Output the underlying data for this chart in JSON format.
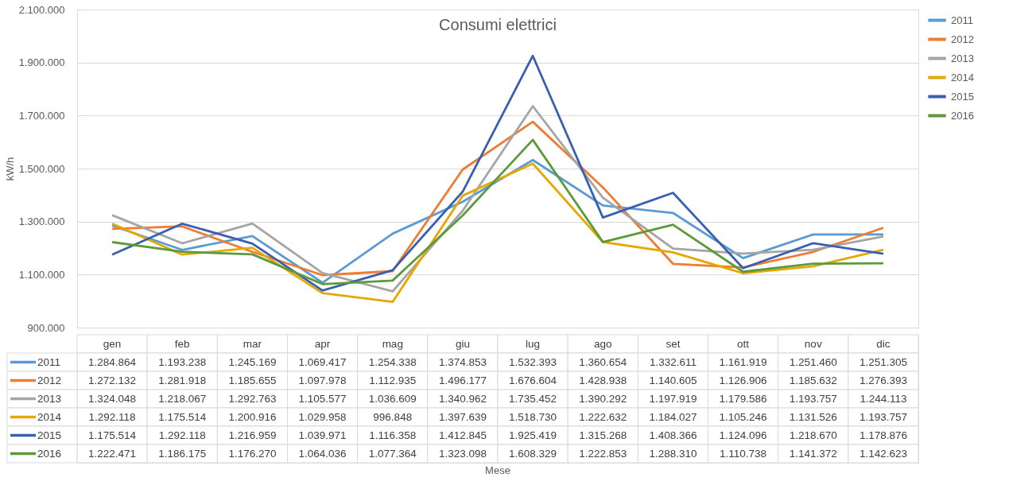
{
  "chart_data": {
    "type": "line",
    "title": "Consumi elettrici",
    "ylabel": "kW/h",
    "annotations": [
      "Mese"
    ],
    "categories": [
      "gen",
      "feb",
      "mar",
      "apr",
      "mag",
      "giu",
      "lug",
      "ago",
      "set",
      "ott",
      "nov",
      "dic"
    ],
    "series": [
      {
        "name": "2011",
        "color": "#5b9bd5",
        "values": [
          1284864,
          1193238,
          1245169,
          1069417,
          1254338,
          1374853,
          1532393,
          1360654,
          1332611,
          1161919,
          1251460,
          1251305
        ],
        "value_labels": [
          "1.284.864",
          "1.193.238",
          "1.245.169",
          "1.069.417",
          "1.254.338",
          "1.374.853",
          "1.532.393",
          "1.360.654",
          "1.332.611",
          "1.161.919",
          "1.251.460",
          "1.251.305"
        ]
      },
      {
        "name": "2012",
        "color": "#ed7d31",
        "values": [
          1272132,
          1281918,
          1185655,
          1097978,
          1112935,
          1496177,
          1676604,
          1428938,
          1140605,
          1126906,
          1185632,
          1276393
        ],
        "value_labels": [
          "1.272.132",
          "1.281.918",
          "1.185.655",
          "1.097.978",
          "1.112.935",
          "1.496.177",
          "1.676.604",
          "1.428.938",
          "1.140.605",
          "1.126.906",
          "1.185.632",
          "1.276.393"
        ]
      },
      {
        "name": "2013",
        "color": "#a5a5a5",
        "values": [
          1324048,
          1218067,
          1292763,
          1105577,
          1036609,
          1340962,
          1735452,
          1390292,
          1197919,
          1179586,
          1193757,
          1244113
        ],
        "value_labels": [
          "1.324.048",
          "1.218.067",
          "1.292.763",
          "1.105.577",
          "1.036.609",
          "1.340.962",
          "1.735.452",
          "1.390.292",
          "1.197.919",
          "1.179.586",
          "1.193.757",
          "1.244.113"
        ]
      },
      {
        "name": "2014",
        "color": "#e6a800",
        "values": [
          1292118,
          1175514,
          1200916,
          1029958,
          996848,
          1397639,
          1518730,
          1222632,
          1184027,
          1105246,
          1131526,
          1193757
        ],
        "value_labels": [
          "1.292.118",
          "1.175.514",
          "1.200.916",
          "1.029.958",
          "996.848",
          "1.397.639",
          "1.518.730",
          "1.222.632",
          "1.184.027",
          "1.105.246",
          "1.131.526",
          "1.193.757"
        ]
      },
      {
        "name": "2015",
        "color": "#3a5fb0",
        "values": [
          1175514,
          1292118,
          1216959,
          1039971,
          1116358,
          1412845,
          1925419,
          1315268,
          1408366,
          1124096,
          1218670,
          1178876
        ],
        "value_labels": [
          "1.175.514",
          "1.292.118",
          "1.216.959",
          "1.039.971",
          "1.116.358",
          "1.412.845",
          "1.925.419",
          "1.315.268",
          "1.408.366",
          "1.124.096",
          "1.218.670",
          "1.178.876"
        ]
      },
      {
        "name": "2016",
        "color": "#5c9a3c",
        "values": [
          1222471,
          1186175,
          1176270,
          1064036,
          1077364,
          1323098,
          1608329,
          1222853,
          1288310,
          1110738,
          1141372,
          1142623
        ],
        "value_labels": [
          "1.222.471",
          "1.186.175",
          "1.176.270",
          "1.064.036",
          "1.077.364",
          "1.323.098",
          "1.608.329",
          "1.222.853",
          "1.288.310",
          "1.110.738",
          "1.141.372",
          "1.142.623"
        ]
      }
    ],
    "ylim": [
      900000,
      2100000
    ],
    "yticks": [
      {
        "value": 900000,
        "label": "900.000"
      },
      {
        "value": 1100000,
        "label": "1.100.000"
      },
      {
        "value": 1300000,
        "label": "1.300.000"
      },
      {
        "value": 1500000,
        "label": "1.500.000"
      },
      {
        "value": 1700000,
        "label": "1.700.000"
      },
      {
        "value": 1900000,
        "label": "1.900.000"
      },
      {
        "value": 2100000,
        "label": "2.100.000"
      }
    ],
    "grid": "y",
    "legend": "right",
    "marker": "none",
    "line_style": "solid"
  }
}
